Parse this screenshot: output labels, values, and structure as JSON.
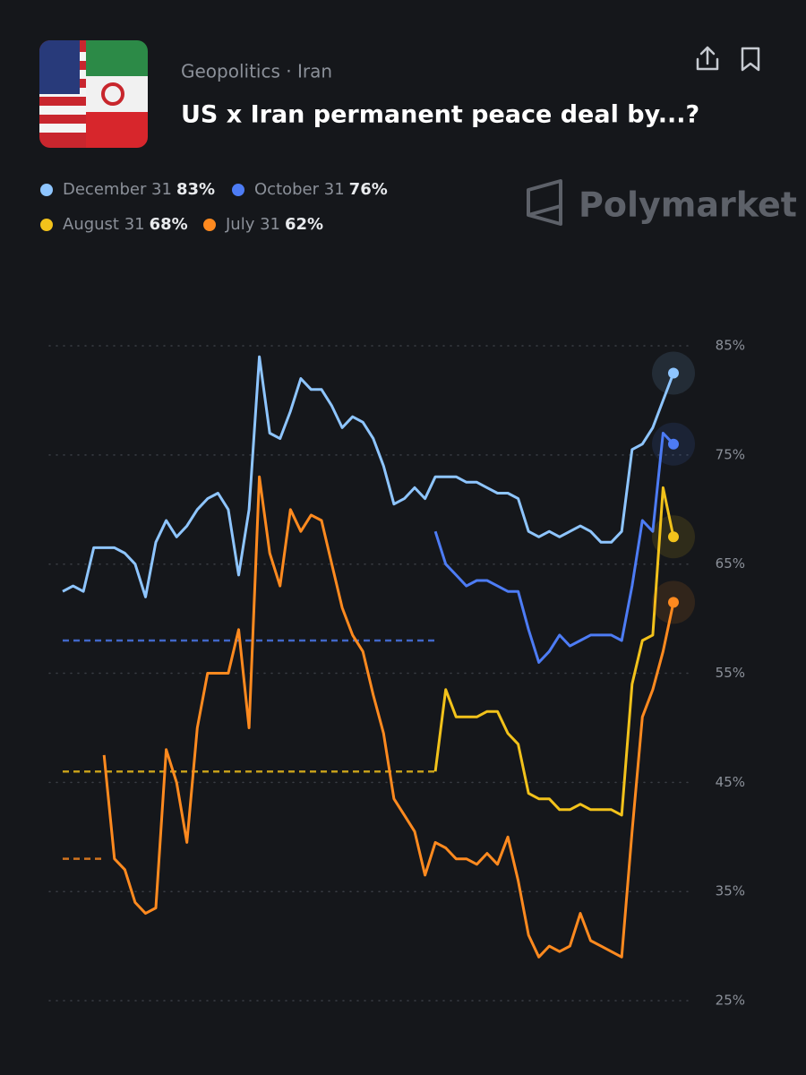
{
  "header": {
    "category": "Geopolitics · Iran",
    "title": "US x Iran permanent peace deal by...?",
    "brand": "Polymarket"
  },
  "chart_data": {
    "type": "line",
    "ylim": [
      22.5,
      88
    ],
    "yticks": [
      {
        "value": 25,
        "label": "25%"
      },
      {
        "value": 35,
        "label": "35%"
      },
      {
        "value": 45,
        "label": "45%"
      },
      {
        "value": 55,
        "label": "55%"
      },
      {
        "value": 65,
        "label": "65%"
      },
      {
        "value": 75,
        "label": "75%"
      },
      {
        "value": 85,
        "label": "85%"
      }
    ],
    "grid": true,
    "series": [
      {
        "name": "December 31",
        "color": "#8ec5ff",
        "current": {
          "value": 83,
          "label": "83%"
        },
        "values": [
          62.5,
          63,
          62.5,
          66.5,
          66.5,
          66.5,
          66,
          65,
          62,
          67,
          69,
          67.5,
          68.5,
          70,
          71,
          71.5,
          70,
          64,
          70,
          84,
          77,
          76.5,
          79,
          82,
          81,
          81,
          79.5,
          77.5,
          78.5,
          78,
          76.5,
          74,
          70.5,
          71,
          72,
          71,
          73,
          73,
          73,
          72.5,
          72.5,
          72,
          71.5,
          71.5,
          71,
          68,
          67.5,
          68,
          67.5,
          68,
          68.5,
          68,
          67,
          67,
          68,
          75.5,
          76,
          77.5,
          80,
          82.5
        ]
      },
      {
        "name": "October 31",
        "color": "#4d7cf5",
        "current": {
          "value": 76,
          "label": "76%"
        },
        "baseline": 58,
        "values": [
          null,
          null,
          null,
          null,
          null,
          null,
          null,
          null,
          null,
          null,
          null,
          null,
          null,
          null,
          null,
          null,
          null,
          null,
          null,
          null,
          null,
          null,
          null,
          null,
          null,
          null,
          null,
          null,
          null,
          null,
          null,
          null,
          null,
          null,
          null,
          null,
          68,
          65,
          64,
          63,
          63.5,
          63.5,
          63,
          62.5,
          62.5,
          59,
          56,
          57,
          58.5,
          57.5,
          58,
          58.5,
          58.5,
          58.5,
          58,
          63,
          69,
          68,
          77,
          76
        ]
      },
      {
        "name": "August 31",
        "color": "#f2c21b",
        "current": {
          "value": 68,
          "label": "68%"
        },
        "baseline": 46,
        "values": [
          null,
          null,
          null,
          null,
          null,
          null,
          null,
          null,
          null,
          null,
          null,
          null,
          null,
          null,
          null,
          null,
          null,
          null,
          null,
          null,
          null,
          null,
          null,
          null,
          null,
          null,
          null,
          null,
          null,
          null,
          null,
          null,
          null,
          null,
          null,
          null,
          46,
          53.5,
          51,
          51,
          51,
          51.5,
          51.5,
          49.5,
          48.5,
          44,
          43.5,
          43.5,
          42.5,
          42.5,
          43,
          42.5,
          42.5,
          42.5,
          42,
          54,
          58,
          58.5,
          72,
          67.5
        ]
      },
      {
        "name": "July 31",
        "color": "#ff8a1f",
        "current": {
          "value": 62,
          "label": "62%"
        },
        "baseline": 38,
        "values": [
          null,
          null,
          null,
          null,
          47.5,
          38,
          37,
          34,
          33,
          33.5,
          48,
          45,
          39.5,
          50,
          55,
          55,
          55,
          59,
          50,
          73,
          66,
          63,
          70,
          68,
          69.5,
          69,
          65,
          61,
          58.5,
          57,
          53,
          49.5,
          43.5,
          42,
          40.5,
          36.5,
          39.5,
          39,
          38,
          38,
          37.5,
          38.5,
          37.5,
          40,
          36,
          31,
          29,
          30,
          29.5,
          30,
          33,
          30.5,
          30,
          29.5,
          29,
          40.5,
          51,
          53.5,
          57,
          61.5
        ]
      }
    ]
  }
}
